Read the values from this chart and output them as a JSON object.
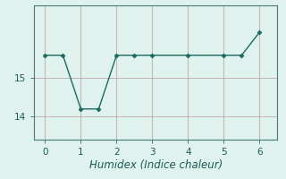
{
  "x": [
    0,
    0.5,
    1,
    1.5,
    2,
    2.5,
    3,
    4,
    5,
    5.5,
    6
  ],
  "y": [
    15.6,
    15.6,
    14.2,
    14.2,
    15.6,
    15.6,
    15.6,
    15.6,
    15.6,
    15.6,
    16.2
  ],
  "line_color": "#1a6b62",
  "marker_color": "#1a6b62",
  "bg_color": "#dff2ee",
  "grid_color": "#c0a8a8",
  "axis_color": "#4a7a70",
  "xlabel": "Humidex (Indice chaleur)",
  "xlim": [
    -0.3,
    6.5
  ],
  "ylim": [
    13.4,
    16.9
  ],
  "yticks": [
    14,
    15
  ],
  "xticks": [
    0,
    1,
    2,
    3,
    4,
    5,
    6
  ],
  "xlabel_fontsize": 8.5,
  "tick_fontsize": 7.5
}
